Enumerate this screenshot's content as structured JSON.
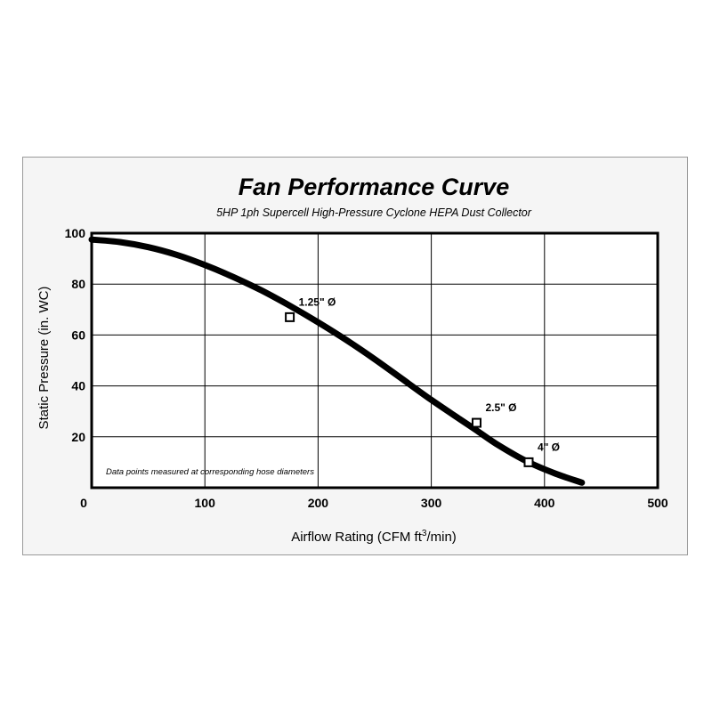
{
  "chart_data": {
    "type": "line",
    "title": "Fan Performance Curve",
    "subtitle": "5HP 1ph Supercell High-Pressure Cyclone HEPA Dust Collector",
    "xlabel_prefix": "Airflow Rating (CFM ft",
    "xlabel_sup": "3",
    "xlabel_suffix": "/min)",
    "ylabel": "Static Pressure (in. WC)",
    "xlim": [
      0,
      500
    ],
    "ylim": [
      0,
      100
    ],
    "x_ticks": [
      "0",
      "100",
      "200",
      "300",
      "400",
      "500"
    ],
    "y_ticks": [
      "100",
      "80",
      "60",
      "40",
      "20"
    ],
    "grid": true,
    "curve": {
      "x": [
        0,
        25,
        50,
        75,
        100,
        125,
        150,
        175,
        200,
        225,
        250,
        275,
        300,
        325,
        340,
        360,
        386,
        410,
        433
      ],
      "y": [
        97.5,
        96.5,
        94.5,
        91.5,
        87.5,
        82.8,
        77.5,
        71.5,
        65,
        58,
        50.5,
        42.5,
        34.5,
        27,
        22.5,
        16.5,
        10,
        5.5,
        2
      ]
    },
    "points": [
      {
        "label": "1.25\" Ø",
        "x": 175,
        "y": 67
      },
      {
        "label": "2.5\" Ø",
        "x": 340,
        "y": 25.5
      },
      {
        "label": "4\" Ø",
        "x": 386,
        "y": 10
      }
    ],
    "note": "Data points measured at corresponding hose diameters",
    "colors": {
      "line": "#000000",
      "grid": "#000000",
      "card_bg": "#f5f5f5",
      "card_border": "#9a9a9a",
      "marker_fill": "#ffffff"
    }
  }
}
